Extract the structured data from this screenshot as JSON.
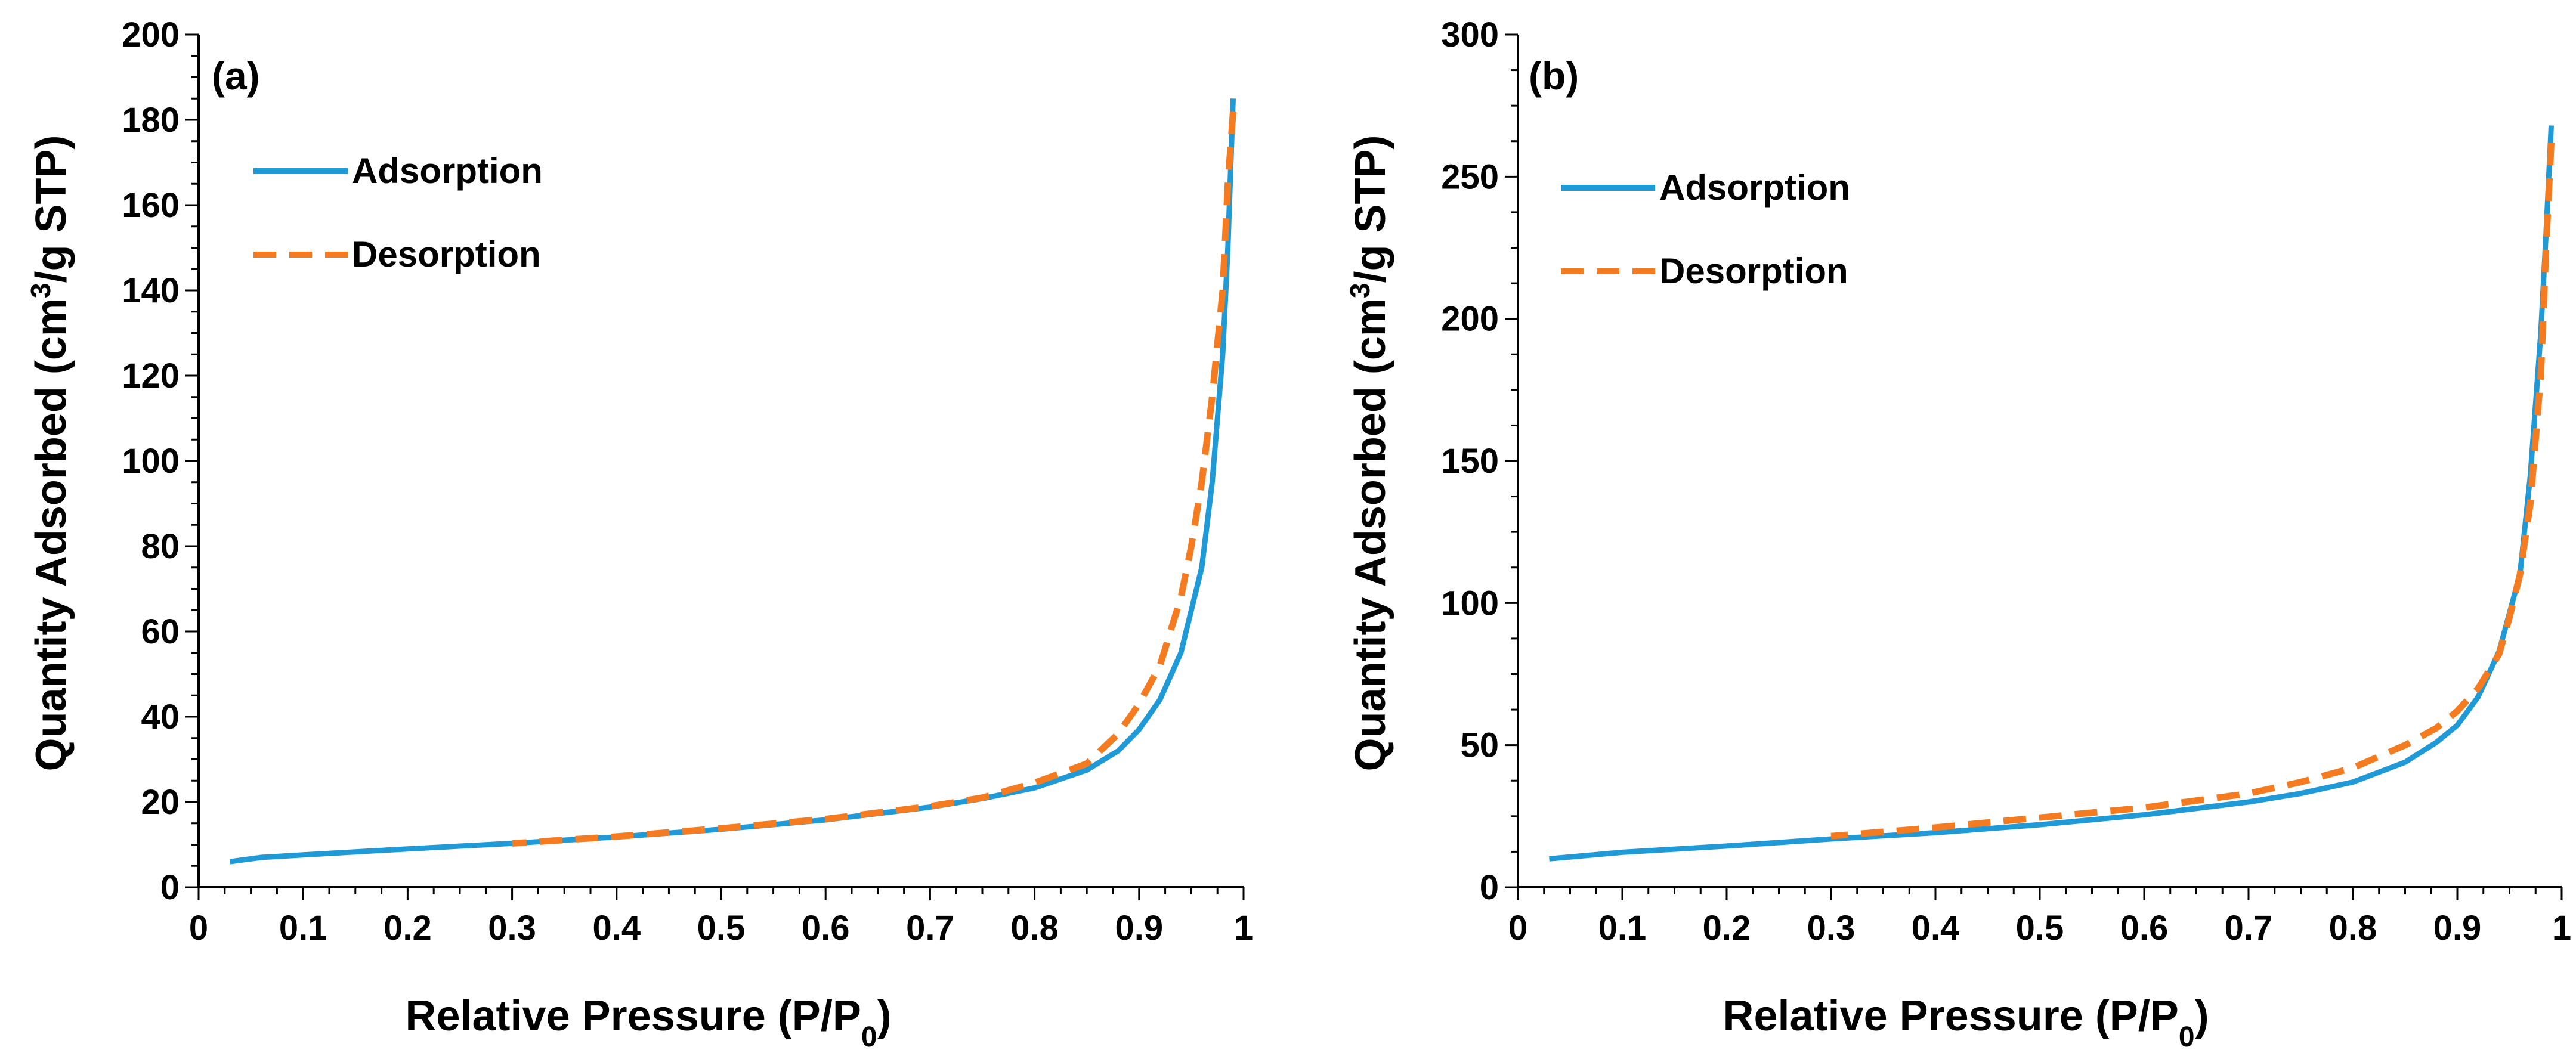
{
  "colors": {
    "adsorption": "#1f9ad6",
    "desorption": "#f47b20",
    "axis": "#000000"
  },
  "chart_data": [
    {
      "type": "line",
      "panel_label": "(a)",
      "xlabel": "Relative Pressure (P/P",
      "xlabel_sub": "0",
      "xlabel_suffix": ")",
      "ylabel_prefix": "Quantity Adsorbed (cm",
      "ylabel_sup": "3",
      "ylabel_suffix": "/g STP)",
      "xlim": [
        0,
        1
      ],
      "ylim": [
        0,
        200
      ],
      "xticks": [
        0,
        0.1,
        0.2,
        0.3,
        0.4,
        0.5,
        0.6,
        0.7,
        0.8,
        0.9,
        1
      ],
      "xtick_labels": [
        "0",
        "0.1",
        "0.2",
        "0.3",
        "0.4",
        "0.5",
        "0.6",
        "0.7",
        "0.8",
        "0.9",
        "1"
      ],
      "yticks": [
        0,
        20,
        40,
        60,
        80,
        100,
        120,
        140,
        160,
        180,
        200
      ],
      "ytick_labels": [
        "0",
        "20",
        "40",
        "60",
        "80",
        "100",
        "120",
        "140",
        "160",
        "180",
        "200"
      ],
      "legend": [
        "Adsorption",
        "Desorption"
      ],
      "series": [
        {
          "name": "Adsorption",
          "x": [
            0.03,
            0.06,
            0.1,
            0.15,
            0.2,
            0.3,
            0.4,
            0.5,
            0.6,
            0.7,
            0.75,
            0.8,
            0.85,
            0.88,
            0.9,
            0.92,
            0.94,
            0.96,
            0.97,
            0.98,
            0.985,
            0.99
          ],
          "y": [
            6,
            7,
            7.6,
            8.3,
            9,
            10.3,
            11.8,
            13.6,
            15.8,
            18.8,
            20.8,
            23.3,
            27.5,
            32,
            37,
            44,
            55,
            75,
            95,
            125,
            150,
            185
          ]
        },
        {
          "name": "Desorption",
          "x": [
            0.99,
            0.985,
            0.98,
            0.97,
            0.96,
            0.95,
            0.94,
            0.92,
            0.9,
            0.88,
            0.85,
            0.8,
            0.75,
            0.7,
            0.6,
            0.5,
            0.4,
            0.3
          ],
          "y": [
            182,
            165,
            140,
            115,
            95,
            80,
            68,
            52,
            43,
            36,
            29,
            24.5,
            21,
            19,
            16,
            13.8,
            11.9,
            10.3
          ]
        }
      ]
    },
    {
      "type": "line",
      "panel_label": "(b)",
      "xlabel": "Relative Pressure (P/P",
      "xlabel_sub": "0",
      "xlabel_suffix": ")",
      "ylabel_prefix": "Quantity Adsorbed (cm",
      "ylabel_sup": "3",
      "ylabel_suffix": "/g STP)",
      "xlim": [
        0,
        1
      ],
      "ylim": [
        0,
        300
      ],
      "xticks": [
        0,
        0.1,
        0.2,
        0.3,
        0.4,
        0.5,
        0.6,
        0.7,
        0.8,
        0.9,
        1
      ],
      "xtick_labels": [
        "0",
        "0.1",
        "0.2",
        "0.3",
        "0.4",
        "0.5",
        "0.6",
        "0.7",
        "0.8",
        "0.9",
        "1"
      ],
      "yticks": [
        0,
        50,
        100,
        150,
        200,
        250,
        300
      ],
      "ytick_labels": [
        "0",
        "50",
        "100",
        "150",
        "200",
        "250",
        "300"
      ],
      "legend": [
        "Adsorption",
        "Desorption"
      ],
      "series": [
        {
          "name": "Adsorption",
          "x": [
            0.03,
            0.06,
            0.1,
            0.15,
            0.2,
            0.3,
            0.4,
            0.5,
            0.6,
            0.7,
            0.75,
            0.8,
            0.85,
            0.88,
            0.9,
            0.92,
            0.94,
            0.96,
            0.97,
            0.98,
            0.985,
            0.99
          ],
          "y": [
            10,
            11,
            12.3,
            13.4,
            14.5,
            17,
            19.2,
            22,
            25.5,
            30,
            33,
            37,
            44,
            51,
            57,
            67,
            83,
            110,
            145,
            195,
            230,
            268
          ]
        },
        {
          "name": "Desorption",
          "x": [
            0.99,
            0.985,
            0.98,
            0.97,
            0.96,
            0.95,
            0.94,
            0.92,
            0.9,
            0.88,
            0.85,
            0.8,
            0.75,
            0.7,
            0.6,
            0.5,
            0.4,
            0.3
          ],
          "y": [
            262,
            225,
            180,
            135,
            110,
            95,
            82,
            70,
            62,
            56,
            50,
            42,
            37,
            33,
            28,
            24.5,
            21,
            18
          ]
        }
      ]
    }
  ]
}
